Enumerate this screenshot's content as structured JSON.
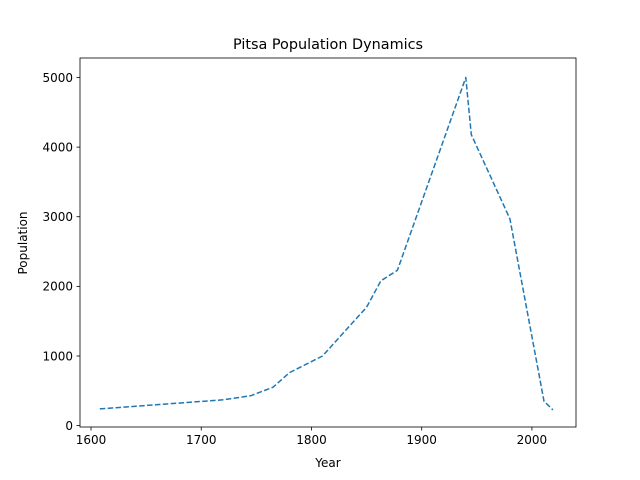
{
  "chart_data": {
    "type": "line",
    "title": "Pitsa Population Dynamics",
    "xlabel": "Year",
    "ylabel": "Population",
    "xlim": [
      1590,
      2040
    ],
    "ylim": [
      -20,
      5280
    ],
    "xticks": [
      1600,
      1700,
      1800,
      1900,
      2000
    ],
    "yticks": [
      0,
      1000,
      2000,
      3000,
      4000,
      5000
    ],
    "grid": false,
    "legend": "none",
    "line_color": "#1f77b4",
    "line_style": "dashed",
    "series": [
      {
        "x": [
          1608,
          1720,
          1745,
          1765,
          1780,
          1810,
          1830,
          1850,
          1863,
          1878,
          1940,
          1945,
          1980,
          2011,
          2019
        ],
        "values": [
          240,
          370,
          430,
          550,
          760,
          1000,
          1350,
          1700,
          2080,
          2230,
          5000,
          4180,
          2970,
          350,
          225
        ]
      }
    ]
  }
}
